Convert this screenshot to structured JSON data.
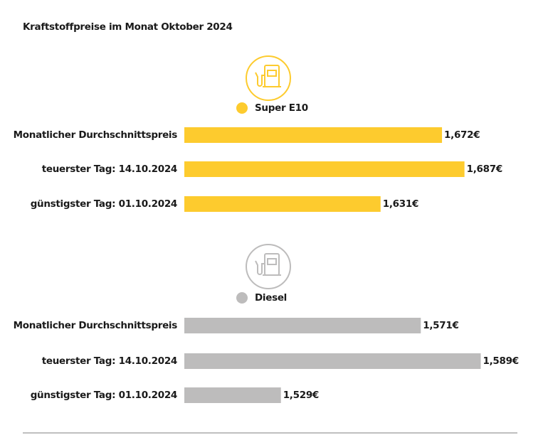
{
  "title": "Kraftstoffpreise im Monat Oktober 2024",
  "chart_data": [
    {
      "type": "bar",
      "orientation": "horizontal",
      "categories": [
        "Monatlicher Durchschnittspreis",
        "teuerster Tag: 14.10.2024",
        "günstigster Tag: 01.10.2024"
      ],
      "series": [
        {
          "name": "Super E10",
          "color": "#fdcb2e",
          "values": [
            1.672,
            1.687,
            1.631
          ],
          "value_labels": [
            "1,672€",
            "1,687€",
            "1,631€"
          ]
        }
      ],
      "xlim": [
        1.5,
        1.7
      ]
    },
    {
      "type": "bar",
      "orientation": "horizontal",
      "categories": [
        "Monatlicher Durchschnittspreis",
        "teuerster Tag: 14.10.2024",
        "günstigster Tag: 01.10.2024"
      ],
      "series": [
        {
          "name": "Diesel",
          "color": "#bdbcbc",
          "values": [
            1.571,
            1.589,
            1.529
          ],
          "value_labels": [
            "1,571€",
            "1,589€",
            "1,529€"
          ]
        }
      ],
      "xlim": [
        1.5,
        1.6
      ]
    }
  ]
}
